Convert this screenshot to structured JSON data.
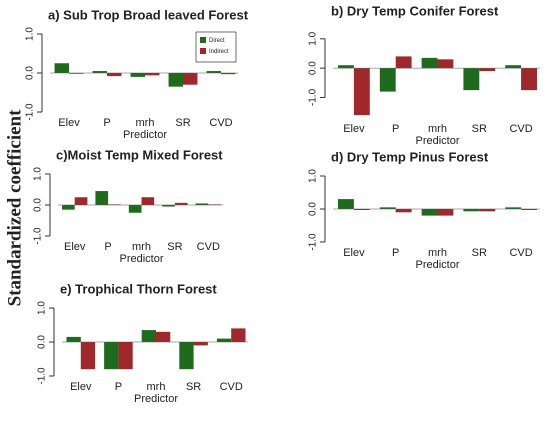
{
  "ylabel": "Standardized coefficient",
  "chart_data": [
    {
      "type": "bar",
      "title": "a) Sub Trop Broad leaved Forest",
      "xlabel": "Predictor",
      "categories": [
        "Elev",
        "P",
        "mrh",
        "SR",
        "CVD"
      ],
      "series": [
        {
          "name": "Direct",
          "color": "#1e6b1e",
          "values": [
            0.25,
            0.05,
            -0.1,
            -0.35,
            0.05
          ]
        },
        {
          "name": "Indirect",
          "color": "#a0282a",
          "values": [
            -0.02,
            -0.08,
            -0.06,
            -0.3,
            -0.03
          ]
        }
      ],
      "ylim": [
        -1,
        1
      ],
      "yticks": [
        {
          "value": -1,
          "label": "-1.0"
        },
        {
          "value": 0,
          "label": "0.0"
        },
        {
          "value": 1,
          "label": "1.0"
        }
      ],
      "legend": "top-right"
    },
    {
      "type": "bar",
      "title": "b) Dry Temp Conifer Forest",
      "xlabel": "Predictor",
      "categories": [
        "Elev",
        "P",
        "mrh",
        "SR",
        "CVD"
      ],
      "series": [
        {
          "color": "#1e6b1e",
          "values": [
            0.1,
            -0.8,
            0.35,
            -0.75,
            0.1
          ]
        },
        {
          "color": "#a0282a",
          "values": [
            -1.6,
            0.4,
            0.3,
            -0.1,
            -0.75
          ]
        }
      ],
      "ylim": [
        -1.7,
        1.3
      ],
      "yticks": [
        {
          "value": -1,
          "label": "-1.0"
        },
        {
          "value": 0,
          "label": "0.0"
        },
        {
          "value": 1,
          "label": "1.0"
        }
      ]
    },
    {
      "type": "bar",
      "title": "c)Moist Temp Mixed Forest",
      "xlabel": "Predictor",
      "categories": [
        "Elev",
        "P",
        "mrh",
        "SR",
        "CVD"
      ],
      "series": [
        {
          "color": "#1e6b1e",
          "values": [
            -0.15,
            0.45,
            -0.25,
            -0.05,
            0.05
          ]
        },
        {
          "color": "#a0282a",
          "values": [
            0.25,
            0.02,
            0.25,
            0.07,
            0.02
          ]
        }
      ],
      "ylim": [
        -1,
        1
      ],
      "yticks": [
        {
          "value": -1,
          "label": "-1.0"
        },
        {
          "value": 0,
          "label": "0.0"
        },
        {
          "value": 1,
          "label": "1.0"
        }
      ]
    },
    {
      "type": "bar",
      "title": "d) Dry Temp Pinus Forest",
      "xlabel": "Predictor",
      "categories": [
        "Elev",
        "P",
        "mrh",
        "SR",
        "CVD"
      ],
      "series": [
        {
          "color": "#1e6b1e",
          "values": [
            0.3,
            0.05,
            -0.2,
            -0.07,
            0.05
          ]
        },
        {
          "color": "#a0282a",
          "values": [
            -0.03,
            -0.1,
            -0.2,
            -0.07,
            -0.03
          ]
        }
      ],
      "ylim": [
        -1,
        1
      ],
      "yticks": [
        {
          "value": -1,
          "label": "-1.0"
        },
        {
          "value": 0,
          "label": "0.0"
        },
        {
          "value": 1,
          "label": "1.0"
        }
      ]
    },
    {
      "type": "bar",
      "title": "e) Trophical Thorn Forest",
      "xlabel": "Predictor",
      "categories": [
        "Elev",
        "P",
        "mrh",
        "SR",
        "CVD"
      ],
      "series": [
        {
          "color": "#1e6b1e",
          "values": [
            0.15,
            -0.8,
            0.35,
            -0.8,
            0.1
          ]
        },
        {
          "color": "#a0282a",
          "values": [
            -0.8,
            -0.8,
            0.3,
            -0.1,
            0.4
          ]
        }
      ],
      "ylim": [
        -1,
        1
      ],
      "yticks": [
        {
          "value": -1,
          "label": "-1.0"
        },
        {
          "value": 0,
          "label": "0.0"
        },
        {
          "value": 1,
          "label": "1.0"
        }
      ]
    }
  ]
}
